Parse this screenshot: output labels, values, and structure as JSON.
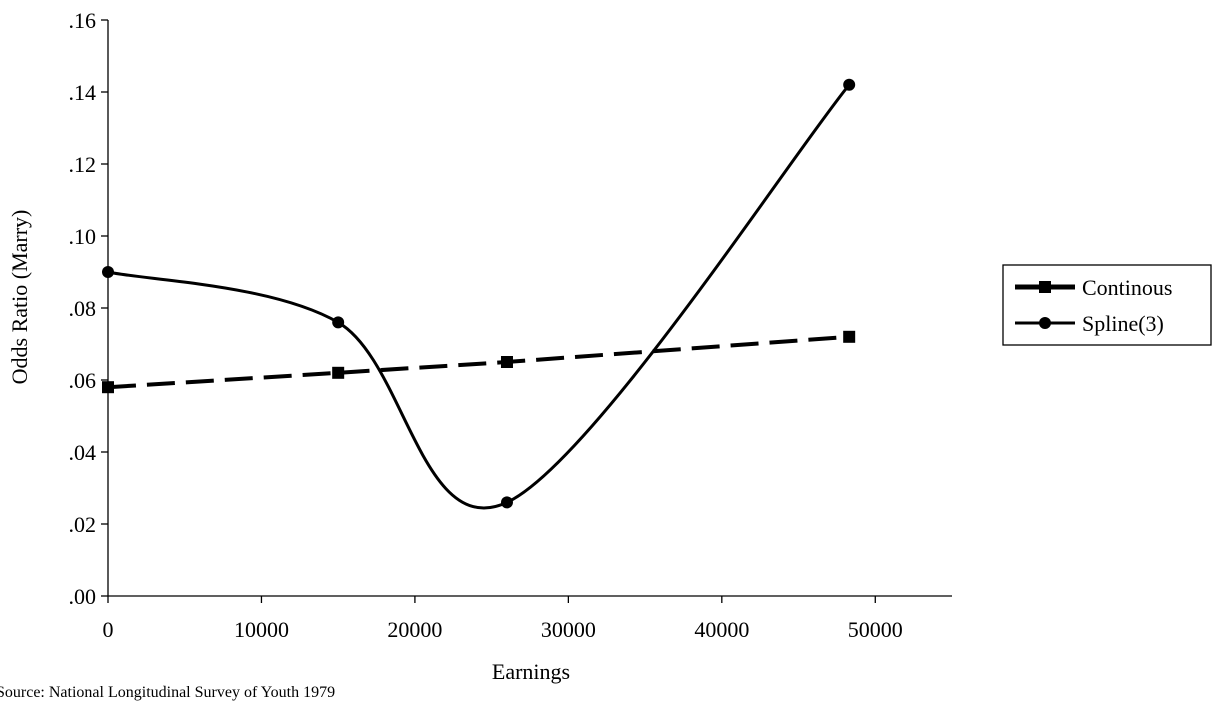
{
  "chart_data": {
    "type": "line",
    "title": "",
    "xlabel": "Earnings",
    "ylabel": "Odds Ratio (Marry)",
    "xlim": [
      0,
      55000
    ],
    "ylim": [
      0,
      0.16
    ],
    "x_ticks": [
      0,
      10000,
      20000,
      30000,
      40000,
      50000
    ],
    "x_tick_labels": [
      "0",
      "10000",
      "20000",
      "30000",
      "40000",
      "50000"
    ],
    "y_ticks": [
      0,
      0.02,
      0.04,
      0.06,
      0.08,
      0.1,
      0.12,
      0.14,
      0.16
    ],
    "y_tick_labels": [
      ".00",
      ".02",
      ".04",
      ".06",
      ".08",
      ".10",
      ".12",
      ".14",
      ".16"
    ],
    "grid": false,
    "legend_position": "right",
    "series": [
      {
        "name": "Continous",
        "style": "dashed",
        "marker": "square",
        "color": "#000000",
        "x": [
          0,
          15000,
          26000,
          48300
        ],
        "y": [
          0.058,
          0.062,
          0.065,
          0.072
        ]
      },
      {
        "name": "Spline(3)",
        "style": "solid",
        "marker": "circle",
        "color": "#000000",
        "x": [
          0,
          15000,
          26000,
          48300
        ],
        "y": [
          0.09,
          0.076,
          0.026,
          0.142
        ]
      }
    ]
  },
  "source_note": "Source:  National Longitudinal Survey of Youth 1979"
}
